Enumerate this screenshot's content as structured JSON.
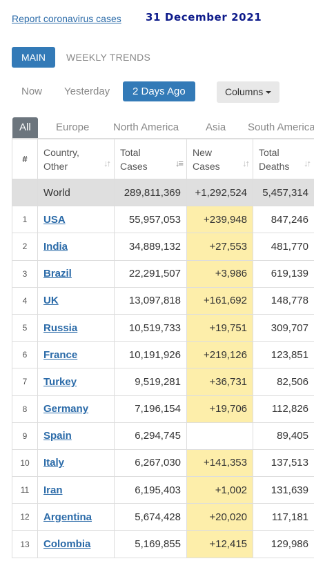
{
  "header": {
    "report_link": "Report coronavirus cases",
    "date": "31 December 2021"
  },
  "main_tabs": {
    "main": "MAIN",
    "weekly": "WEEKLY TRENDS"
  },
  "day_tabs": {
    "now": "Now",
    "yesterday": "Yesterday",
    "two_days": "2 Days Ago",
    "columns": "Columns"
  },
  "region_tabs": [
    "All",
    "Europe",
    "North America",
    "Asia",
    "South America"
  ],
  "table": {
    "headers": {
      "rank": "#",
      "country_1": "Country,",
      "country_2": "Other",
      "total_cases_1": "Total",
      "total_cases_2": "Cases",
      "new_cases_1": "New",
      "new_cases_2": "Cases",
      "total_deaths_1": "Total",
      "total_deaths_2": "Deaths"
    },
    "world": {
      "name": "World",
      "total_cases": "289,811,369",
      "new_cases": "+1,292,524",
      "total_deaths": "5,457,314"
    },
    "rows": [
      {
        "rank": "1",
        "country": "USA",
        "total_cases": "55,957,053",
        "new_cases": "+239,948",
        "total_deaths": "847,246"
      },
      {
        "rank": "2",
        "country": "India",
        "total_cases": "34,889,132",
        "new_cases": "+27,553",
        "total_deaths": "481,770"
      },
      {
        "rank": "3",
        "country": "Brazil",
        "total_cases": "22,291,507",
        "new_cases": "+3,986",
        "total_deaths": "619,139"
      },
      {
        "rank": "4",
        "country": "UK",
        "total_cases": "13,097,818",
        "new_cases": "+161,692",
        "total_deaths": "148,778"
      },
      {
        "rank": "5",
        "country": "Russia",
        "total_cases": "10,519,733",
        "new_cases": "+19,751",
        "total_deaths": "309,707"
      },
      {
        "rank": "6",
        "country": "France",
        "total_cases": "10,191,926",
        "new_cases": "+219,126",
        "total_deaths": "123,851"
      },
      {
        "rank": "7",
        "country": "Turkey",
        "total_cases": "9,519,281",
        "new_cases": "+36,731",
        "total_deaths": "82,506"
      },
      {
        "rank": "8",
        "country": "Germany",
        "total_cases": "7,196,154",
        "new_cases": "+19,706",
        "total_deaths": "112,826"
      },
      {
        "rank": "9",
        "country": "Spain",
        "total_cases": "6,294,745",
        "new_cases": "",
        "total_deaths": "89,405"
      },
      {
        "rank": "10",
        "country": "Italy",
        "total_cases": "6,267,030",
        "new_cases": "+141,353",
        "total_deaths": "137,513"
      },
      {
        "rank": "11",
        "country": "Iran",
        "total_cases": "6,195,403",
        "new_cases": "+1,002",
        "total_deaths": "131,639"
      },
      {
        "rank": "12",
        "country": "Argentina",
        "total_cases": "5,674,428",
        "new_cases": "+20,020",
        "total_deaths": "117,181"
      },
      {
        "rank": "13",
        "country": "Colombia",
        "total_cases": "5,169,855",
        "new_cases": "+12,415",
        "total_deaths": "129,986"
      }
    ]
  },
  "colors": {
    "accent": "#337ab7",
    "link": "#2a6aa8",
    "highlight": "#fdeeaa",
    "world_row": "#dfdfdf",
    "active_region": "#6c757d"
  }
}
